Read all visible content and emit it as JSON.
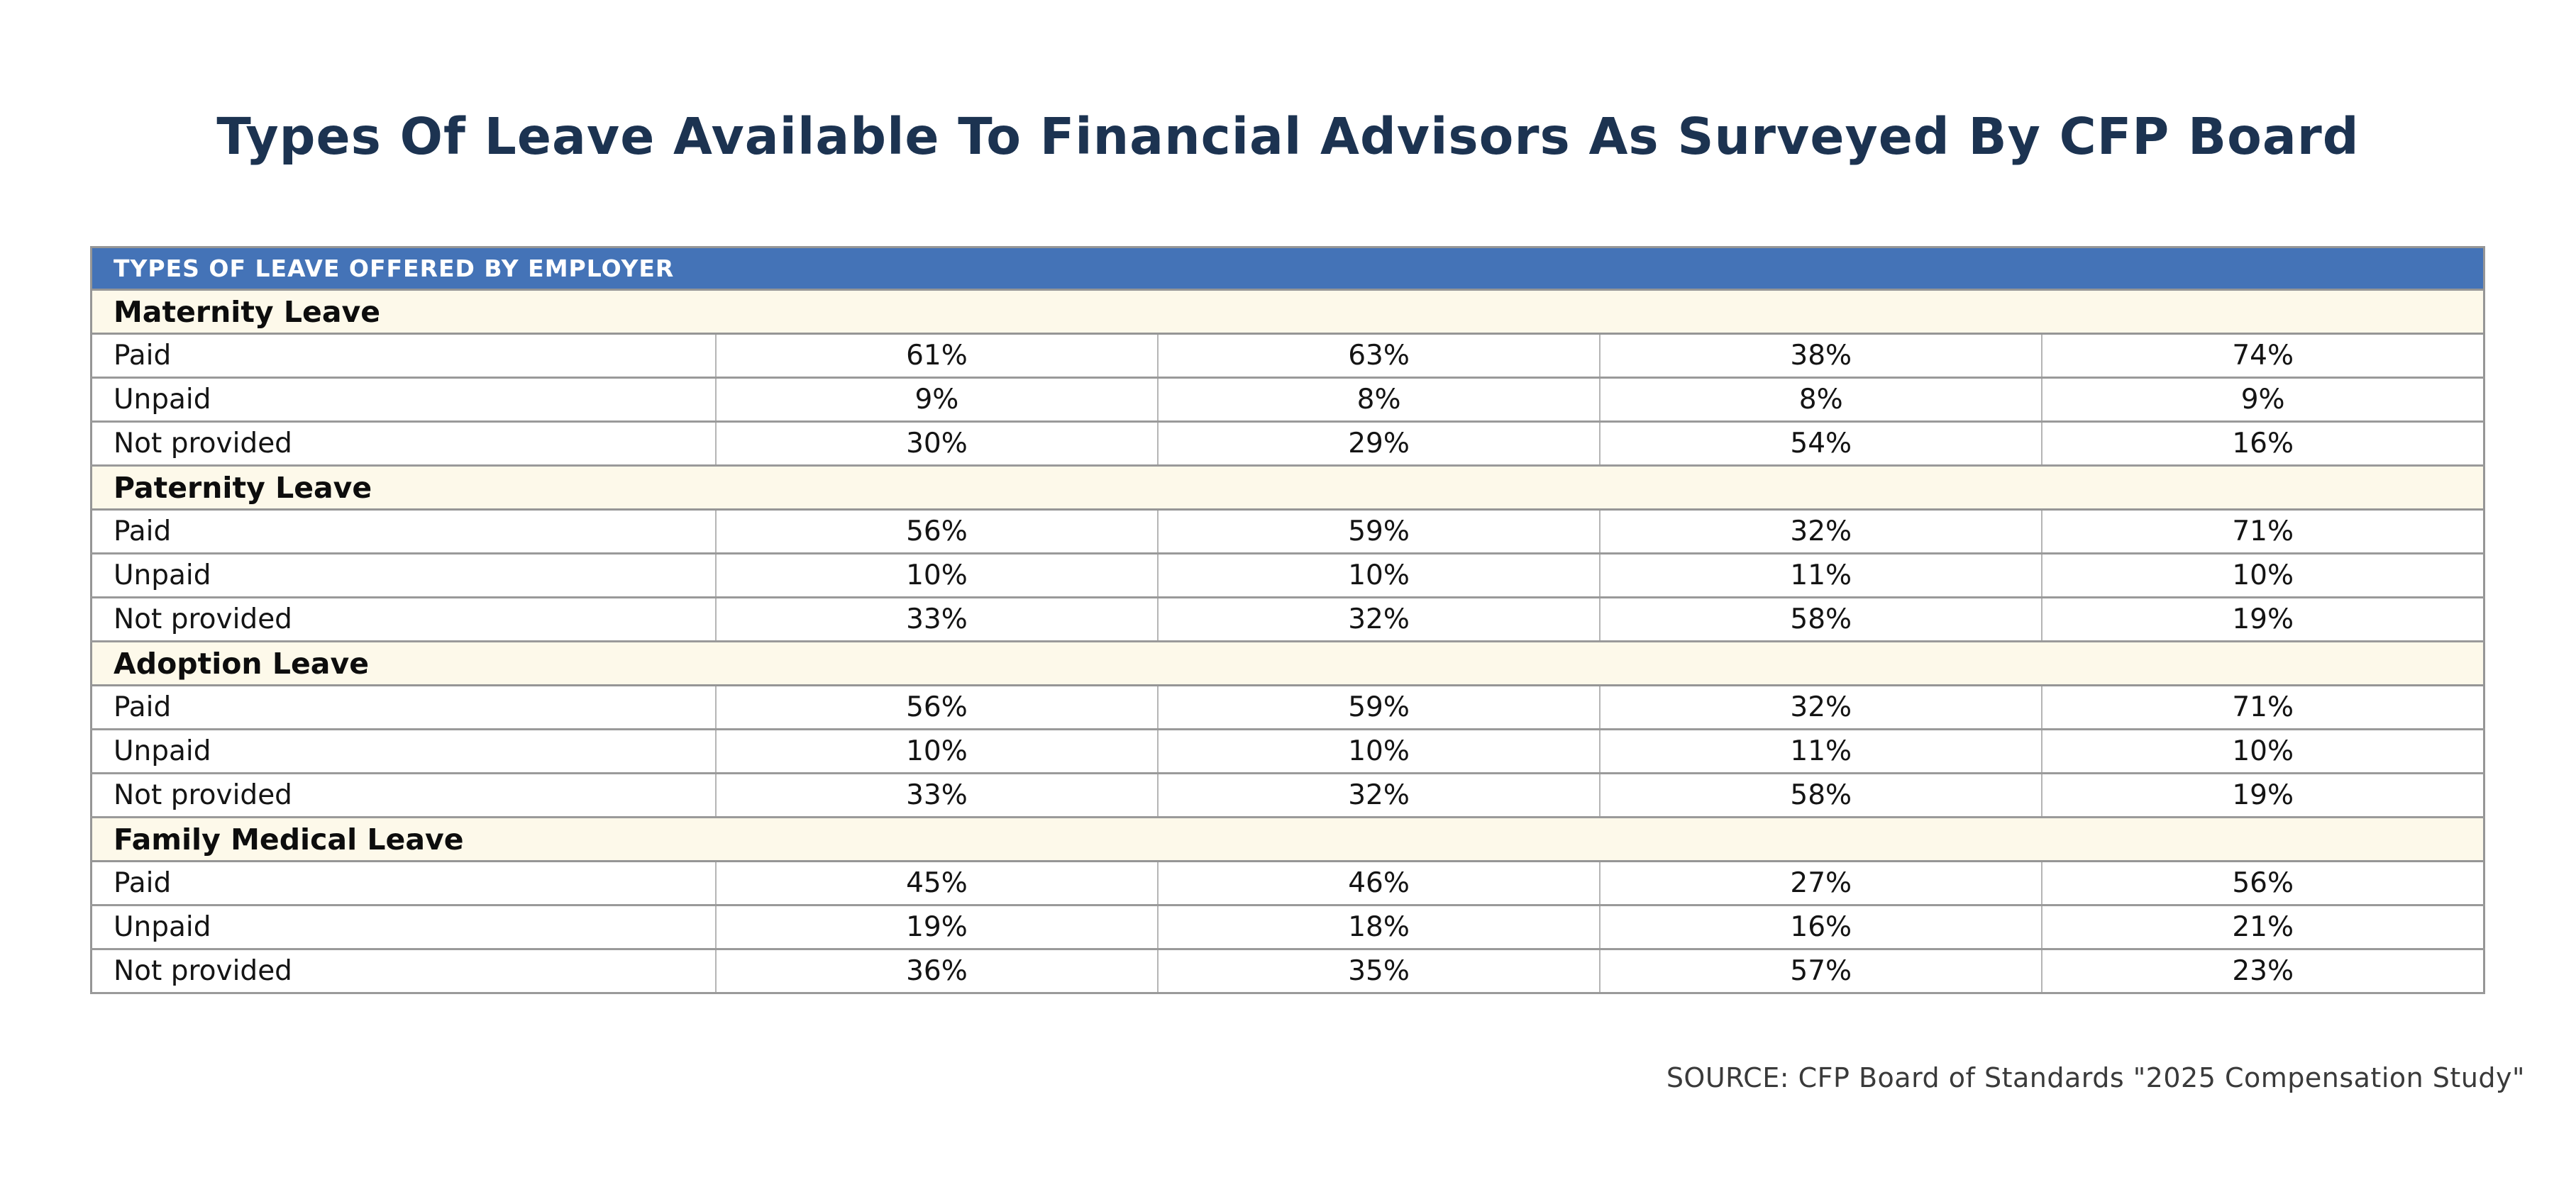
{
  "page": {
    "title": "Types Of Leave Available To Financial Advisors As Surveyed By CFP Board",
    "source": "SOURCE: CFP Board of Standards \"2025 Compensation Study\""
  },
  "colors": {
    "title_navy": "#1c3351",
    "header_blue": "#4473b7",
    "header_text": "#ffffff",
    "section_cream": "#fdf9ea",
    "border_gray": "#969696",
    "divider_gray": "#b5b5b5",
    "body_text": "#141414",
    "source_text": "#3a3a3a"
  },
  "table": {
    "header": "TYPES OF LEAVE OFFERED BY EMPLOYER",
    "sections": [
      {
        "name": "Maternity Leave",
        "rows": [
          {
            "label": "Paid",
            "values": [
              "61%",
              "63%",
              "38%",
              "74%"
            ]
          },
          {
            "label": "Unpaid",
            "values": [
              "9%",
              "8%",
              "8%",
              "9%"
            ]
          },
          {
            "label": "Not provided",
            "values": [
              "30%",
              "29%",
              "54%",
              "16%"
            ]
          }
        ]
      },
      {
        "name": "Paternity Leave",
        "rows": [
          {
            "label": "Paid",
            "values": [
              "56%",
              "59%",
              "32%",
              "71%"
            ]
          },
          {
            "label": "Unpaid",
            "values": [
              "10%",
              "10%",
              "11%",
              "10%"
            ]
          },
          {
            "label": "Not provided",
            "values": [
              "33%",
              "32%",
              "58%",
              "19%"
            ]
          }
        ]
      },
      {
        "name": "Adoption Leave",
        "rows": [
          {
            "label": "Paid",
            "values": [
              "56%",
              "59%",
              "32%",
              "71%"
            ]
          },
          {
            "label": "Unpaid",
            "values": [
              "10%",
              "10%",
              "11%",
              "10%"
            ]
          },
          {
            "label": "Not provided",
            "values": [
              "33%",
              "32%",
              "58%",
              "19%"
            ]
          }
        ]
      },
      {
        "name": "Family Medical Leave",
        "rows": [
          {
            "label": "Paid",
            "values": [
              "45%",
              "46%",
              "27%",
              "56%"
            ]
          },
          {
            "label": "Unpaid",
            "values": [
              "19%",
              "18%",
              "16%",
              "21%"
            ]
          },
          {
            "label": "Not provided",
            "values": [
              "36%",
              "35%",
              "57%",
              "23%"
            ]
          }
        ]
      }
    ]
  },
  "chart_data": {
    "type": "table",
    "title": "Types Of Leave Available To Financial Advisors As Surveyed By CFP Board",
    "table_header": "TYPES OF LEAVE OFFERED BY EMPLOYER",
    "column_headers": [],
    "num_value_columns": 4,
    "sections": [
      {
        "section": "Maternity Leave",
        "rows": [
          {
            "label": "Paid",
            "values_pct": [
              61,
              63,
              38,
              74
            ]
          },
          {
            "label": "Unpaid",
            "values_pct": [
              9,
              8,
              8,
              9
            ]
          },
          {
            "label": "Not provided",
            "values_pct": [
              30,
              29,
              54,
              16
            ]
          }
        ]
      },
      {
        "section": "Paternity Leave",
        "rows": [
          {
            "label": "Paid",
            "values_pct": [
              56,
              59,
              32,
              71
            ]
          },
          {
            "label": "Unpaid",
            "values_pct": [
              10,
              10,
              11,
              10
            ]
          },
          {
            "label": "Not provided",
            "values_pct": [
              33,
              32,
              58,
              19
            ]
          }
        ]
      },
      {
        "section": "Adoption Leave",
        "rows": [
          {
            "label": "Paid",
            "values_pct": [
              56,
              59,
              32,
              71
            ]
          },
          {
            "label": "Unpaid",
            "values_pct": [
              10,
              10,
              11,
              10
            ]
          },
          {
            "label": "Not provided",
            "values_pct": [
              33,
              32,
              58,
              19
            ]
          }
        ]
      },
      {
        "section": "Family Medical Leave",
        "rows": [
          {
            "label": "Paid",
            "values_pct": [
              45,
              46,
              27,
              56
            ]
          },
          {
            "label": "Unpaid",
            "values_pct": [
              19,
              18,
              16,
              21
            ]
          },
          {
            "label": "Not provided",
            "values_pct": [
              36,
              35,
              57,
              23
            ]
          }
        ]
      }
    ],
    "source": "SOURCE: CFP Board of Standards \"2025 Compensation Study\""
  }
}
